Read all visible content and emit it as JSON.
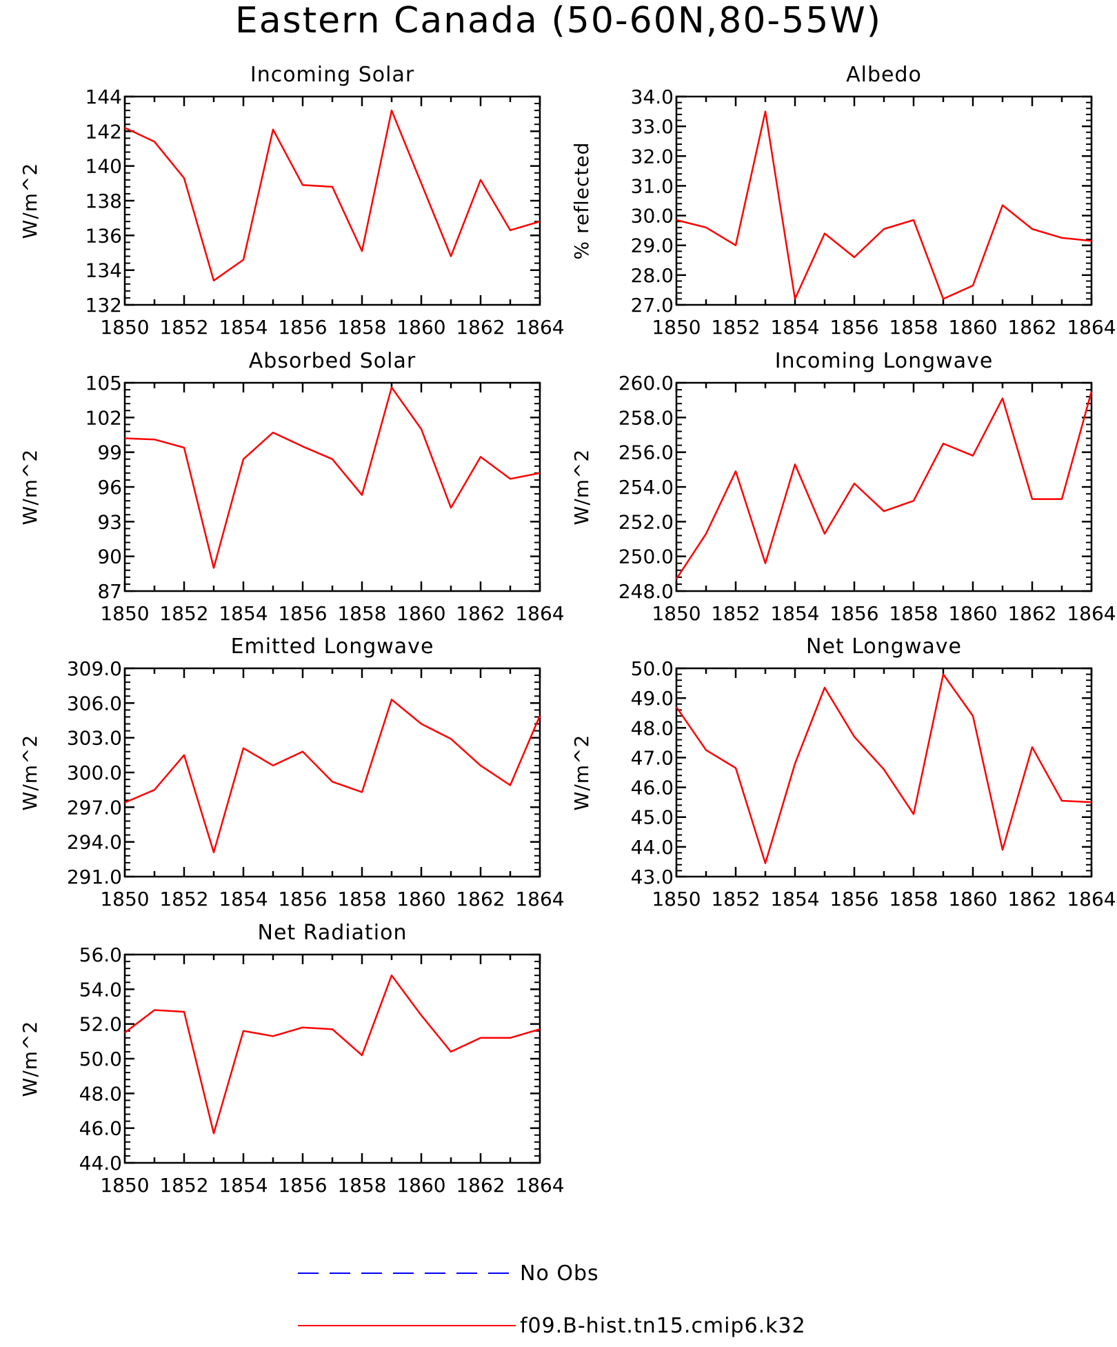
{
  "figure": {
    "title": "Eastern Canada (50-60N,80-55W)"
  },
  "legend": [
    {
      "label": "No Obs",
      "color": "#0000ff",
      "style": "dashed"
    },
    {
      "label": "f09.B-hist.tn15.cmip6.k32",
      "color": "#ff0000",
      "style": "solid"
    }
  ],
  "series_color": "#ff0000",
  "chart_data": [
    {
      "type": "line",
      "title": "Incoming Solar",
      "ylabel": "W/m^2",
      "xlim": [
        1850,
        1864
      ],
      "ylim": [
        132,
        144
      ],
      "yticks": [
        "132",
        "134",
        "136",
        "138",
        "140",
        "142",
        "144"
      ],
      "xticks": [
        "1850",
        "1852",
        "1854",
        "1856",
        "1858",
        "1860",
        "1862",
        "1864"
      ],
      "x": [
        1850,
        1851,
        1852,
        1853,
        1854,
        1855,
        1856,
        1857,
        1858,
        1859,
        1860,
        1861,
        1862,
        1863,
        1864
      ],
      "series": [
        {
          "name": "f09.B-hist.tn15.cmip6.k32",
          "values": [
            142.2,
            141.4,
            139.3,
            133.4,
            134.6,
            142.1,
            138.9,
            138.8,
            135.1,
            143.2,
            139.0,
            134.8,
            139.2,
            136.3,
            136.8
          ]
        }
      ]
    },
    {
      "type": "line",
      "title": "Albedo",
      "ylabel": "% reflected",
      "xlim": [
        1850,
        1864
      ],
      "ylim": [
        27.0,
        34.0
      ],
      "yticks": [
        "27.0",
        "28.0",
        "29.0",
        "30.0",
        "31.0",
        "32.0",
        "33.0",
        "34.0"
      ],
      "xticks": [
        "1850",
        "1852",
        "1854",
        "1856",
        "1858",
        "1860",
        "1862",
        "1864"
      ],
      "x": [
        1850,
        1851,
        1852,
        1853,
        1854,
        1855,
        1856,
        1857,
        1858,
        1859,
        1860,
        1861,
        1862,
        1863,
        1864
      ],
      "series": [
        {
          "name": "f09.B-hist.tn15.cmip6.k32",
          "values": [
            29.85,
            29.6,
            29.0,
            33.5,
            27.2,
            29.4,
            28.6,
            29.55,
            29.85,
            27.2,
            27.65,
            30.35,
            29.55,
            29.25,
            29.15
          ]
        }
      ]
    },
    {
      "type": "line",
      "title": "Absorbed Solar",
      "ylabel": "W/m^2",
      "xlim": [
        1850,
        1864
      ],
      "ylim": [
        87,
        105
      ],
      "yticks": [
        "87",
        "90",
        "93",
        "96",
        "99",
        "102",
        "105"
      ],
      "xticks": [
        "1850",
        "1852",
        "1854",
        "1856",
        "1858",
        "1860",
        "1862",
        "1864"
      ],
      "x": [
        1850,
        1851,
        1852,
        1853,
        1854,
        1855,
        1856,
        1857,
        1858,
        1859,
        1860,
        1861,
        1862,
        1863,
        1864
      ],
      "series": [
        {
          "name": "f09.B-hist.tn15.cmip6.k32",
          "values": [
            100.2,
            100.1,
            99.4,
            89.0,
            98.4,
            100.7,
            99.5,
            98.4,
            95.3,
            104.6,
            101.0,
            94.2,
            98.6,
            96.7,
            97.2
          ]
        }
      ]
    },
    {
      "type": "line",
      "title": "Incoming Longwave",
      "ylabel": "W/m^2",
      "xlim": [
        1850,
        1864
      ],
      "ylim": [
        248.0,
        260.0
      ],
      "yticks": [
        "248.0",
        "250.0",
        "252.0",
        "254.0",
        "256.0",
        "258.0",
        "260.0"
      ],
      "xticks": [
        "1850",
        "1852",
        "1854",
        "1856",
        "1858",
        "1860",
        "1862",
        "1864"
      ],
      "x": [
        1850,
        1851,
        1852,
        1853,
        1854,
        1855,
        1856,
        1857,
        1858,
        1859,
        1860,
        1861,
        1862,
        1863,
        1864
      ],
      "series": [
        {
          "name": "f09.B-hist.tn15.cmip6.k32",
          "values": [
            248.7,
            251.3,
            254.9,
            249.6,
            255.3,
            251.3,
            254.2,
            252.6,
            253.2,
            256.5,
            255.8,
            259.1,
            253.3,
            253.3,
            259.5
          ]
        }
      ]
    },
    {
      "type": "line",
      "title": "Emitted Longwave",
      "ylabel": "W/m^2",
      "xlim": [
        1850,
        1864
      ],
      "ylim": [
        291.0,
        309.0
      ],
      "yticks": [
        "291.0",
        "294.0",
        "297.0",
        "300.0",
        "303.0",
        "306.0",
        "309.0"
      ],
      "xticks": [
        "1850",
        "1852",
        "1854",
        "1856",
        "1858",
        "1860",
        "1862",
        "1864"
      ],
      "x": [
        1850,
        1851,
        1852,
        1853,
        1854,
        1855,
        1856,
        1857,
        1858,
        1859,
        1860,
        1861,
        1862,
        1863,
        1864
      ],
      "series": [
        {
          "name": "f09.B-hist.tn15.cmip6.k32",
          "values": [
            297.4,
            298.5,
            301.5,
            293.1,
            302.1,
            300.6,
            301.8,
            299.2,
            298.3,
            306.3,
            304.2,
            302.9,
            300.6,
            298.9,
            304.9
          ]
        }
      ]
    },
    {
      "type": "line",
      "title": "Net Longwave",
      "ylabel": "W/m^2",
      "xlim": [
        1850,
        1864
      ],
      "ylim": [
        43.0,
        50.0
      ],
      "yticks": [
        "43.0",
        "44.0",
        "45.0",
        "46.0",
        "47.0",
        "48.0",
        "49.0",
        "50.0"
      ],
      "xticks": [
        "1850",
        "1852",
        "1854",
        "1856",
        "1858",
        "1860",
        "1862",
        "1864"
      ],
      "x": [
        1850,
        1851,
        1852,
        1853,
        1854,
        1855,
        1856,
        1857,
        1858,
        1859,
        1860,
        1861,
        1862,
        1863,
        1864
      ],
      "series": [
        {
          "name": "f09.B-hist.tn15.cmip6.k32",
          "values": [
            48.7,
            47.25,
            46.65,
            43.45,
            46.8,
            49.35,
            47.7,
            46.6,
            45.1,
            49.8,
            48.4,
            43.9,
            47.35,
            45.55,
            45.5
          ]
        }
      ]
    },
    {
      "type": "line",
      "title": "Net Radiation",
      "ylabel": "W/m^2",
      "xlim": [
        1850,
        1864
      ],
      "ylim": [
        44.0,
        56.0
      ],
      "yticks": [
        "44.0",
        "46.0",
        "48.0",
        "50.0",
        "52.0",
        "54.0",
        "56.0"
      ],
      "xticks": [
        "1850",
        "1852",
        "1854",
        "1856",
        "1858",
        "1860",
        "1862",
        "1864"
      ],
      "x": [
        1850,
        1851,
        1852,
        1853,
        1854,
        1855,
        1856,
        1857,
        1858,
        1859,
        1860,
        1861,
        1862,
        1863,
        1864
      ],
      "series": [
        {
          "name": "f09.B-hist.tn15.cmip6.k32",
          "values": [
            51.5,
            52.8,
            52.7,
            45.7,
            51.6,
            51.3,
            51.8,
            51.7,
            50.2,
            54.8,
            52.5,
            50.4,
            51.2,
            51.2,
            51.7
          ]
        }
      ]
    }
  ]
}
